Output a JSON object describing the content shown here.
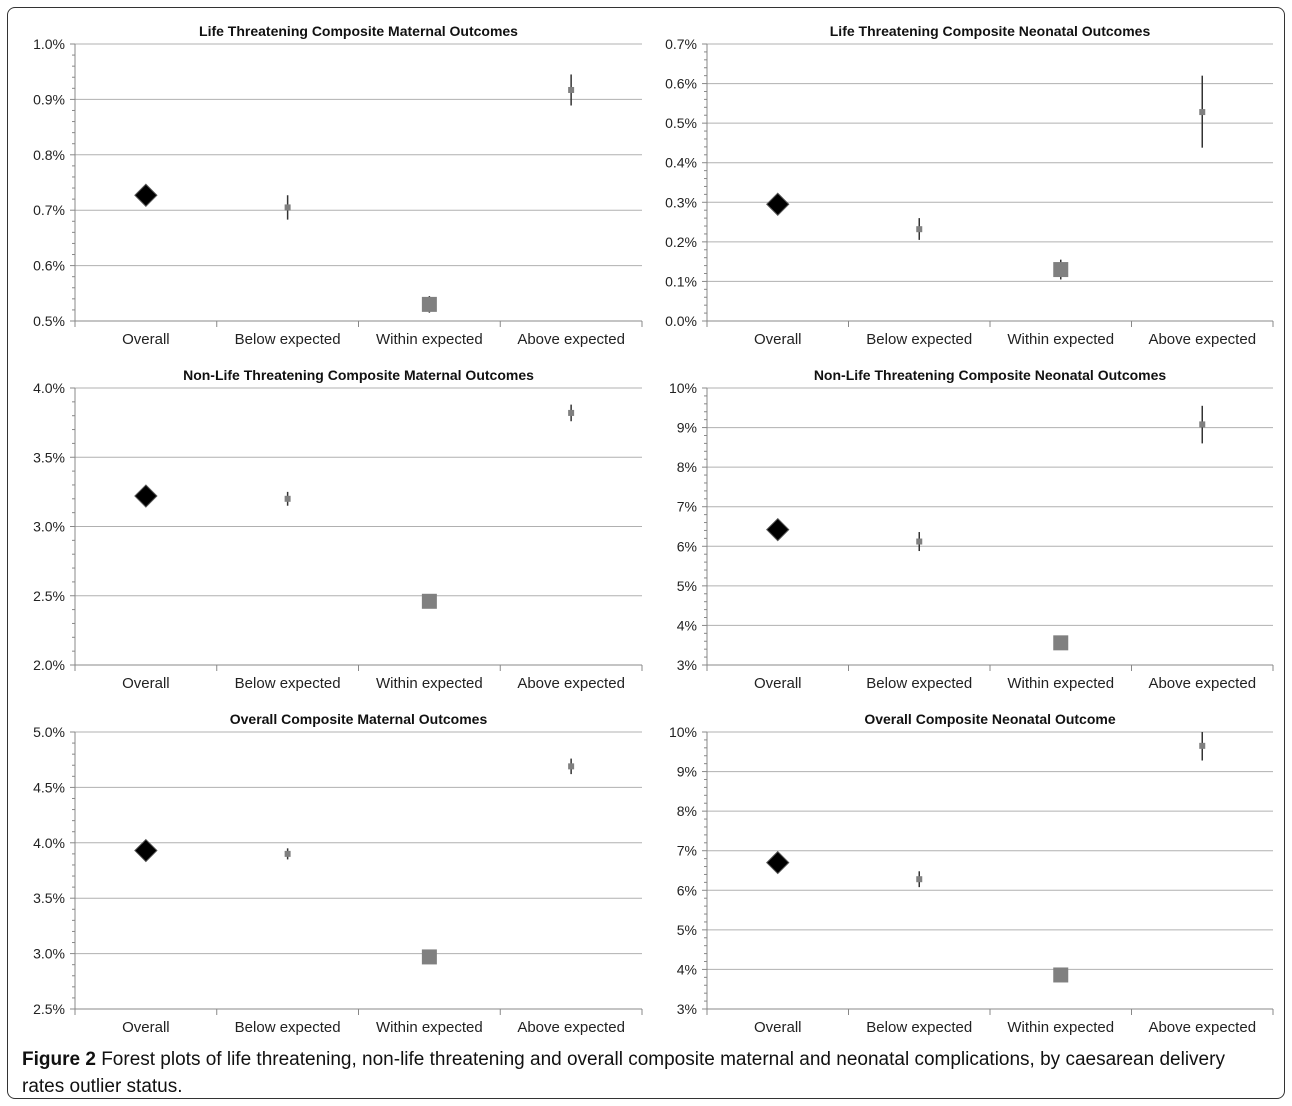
{
  "caption": {
    "label": "Figure 2",
    "text": "Forest plots of life threatening, non-life threatening and overall composite maternal and neonatal complications, by caesarean delivery rates outlier status."
  },
  "colors": {
    "overall_marker": "#000000",
    "group_marker": "#808080",
    "grid": "#b0b0b0",
    "axis": "#888888"
  },
  "chart_data": [
    {
      "type": "scatter",
      "title": "Life Threatening Composite Maternal Outcomes",
      "categories": [
        "Overall",
        "Below expected",
        "Within expected",
        "Above expected"
      ],
      "ylim": [
        0.5,
        1.0
      ],
      "yticks": [
        0.5,
        0.6,
        0.7,
        0.8,
        0.9,
        1.0
      ],
      "ytick_labels": [
        "0.5%",
        "0.6%",
        "0.7%",
        "0.8%",
        "0.9%",
        "1.0%"
      ],
      "grid": true,
      "unit": "%",
      "points": [
        {
          "category": "Overall",
          "value": 0.727,
          "lower": 0.727,
          "upper": 0.727,
          "marker": "diamond"
        },
        {
          "category": "Below expected",
          "value": 0.705,
          "lower": 0.683,
          "upper": 0.727,
          "marker": "square-small"
        },
        {
          "category": "Within expected",
          "value": 0.53,
          "lower": 0.515,
          "upper": 0.545,
          "marker": "square-large"
        },
        {
          "category": "Above expected",
          "value": 0.917,
          "lower": 0.889,
          "upper": 0.945,
          "marker": "square-small"
        }
      ]
    },
    {
      "type": "scatter",
      "title": "Life Threatening Composite Neonatal Outcomes",
      "categories": [
        "Overall",
        "Below expected",
        "Within expected",
        "Above expected"
      ],
      "ylim": [
        0.0,
        0.7
      ],
      "yticks": [
        0.0,
        0.1,
        0.2,
        0.3,
        0.4,
        0.5,
        0.6,
        0.7
      ],
      "ytick_labels": [
        "0.0%",
        "0.1%",
        "0.2%",
        "0.3%",
        "0.4%",
        "0.5%",
        "0.6%",
        "0.7%"
      ],
      "grid": true,
      "unit": "%",
      "points": [
        {
          "category": "Overall",
          "value": 0.295,
          "lower": 0.295,
          "upper": 0.295,
          "marker": "diamond"
        },
        {
          "category": "Below expected",
          "value": 0.232,
          "lower": 0.205,
          "upper": 0.26,
          "marker": "square-small"
        },
        {
          "category": "Within expected",
          "value": 0.13,
          "lower": 0.105,
          "upper": 0.155,
          "marker": "square-large"
        },
        {
          "category": "Above expected",
          "value": 0.528,
          "lower": 0.438,
          "upper": 0.62,
          "marker": "square-small"
        }
      ]
    },
    {
      "type": "scatter",
      "title": "Non-Life Threatening Composite Maternal Outcomes",
      "categories": [
        "Overall",
        "Below expected",
        "Within expected",
        "Above expected"
      ],
      "ylim": [
        2.0,
        4.0
      ],
      "yticks": [
        2.0,
        2.5,
        3.0,
        3.5,
        4.0
      ],
      "ytick_labels": [
        "2.0%",
        "2.5%",
        "3.0%",
        "3.5%",
        "4.0%"
      ],
      "grid": true,
      "unit": "%",
      "points": [
        {
          "category": "Overall",
          "value": 3.22,
          "lower": 3.22,
          "upper": 3.22,
          "marker": "diamond"
        },
        {
          "category": "Below expected",
          "value": 3.2,
          "lower": 3.15,
          "upper": 3.25,
          "marker": "square-small"
        },
        {
          "category": "Within expected",
          "value": 2.46,
          "lower": 2.43,
          "upper": 2.49,
          "marker": "square-large"
        },
        {
          "category": "Above expected",
          "value": 3.82,
          "lower": 3.76,
          "upper": 3.88,
          "marker": "square-small"
        }
      ]
    },
    {
      "type": "scatter",
      "title": "Non-Life Threatening Composite Neonatal Outcomes",
      "categories": [
        "Overall",
        "Below expected",
        "Within expected",
        "Above expected"
      ],
      "ylim": [
        3,
        10
      ],
      "yticks": [
        3,
        4,
        5,
        6,
        7,
        8,
        9,
        10
      ],
      "ytick_labels": [
        "3%",
        "4%",
        "5%",
        "6%",
        "7%",
        "8%",
        "9%",
        "10%"
      ],
      "grid": true,
      "unit": "%",
      "points": [
        {
          "category": "Overall",
          "value": 6.42,
          "lower": 6.42,
          "upper": 6.42,
          "marker": "diamond"
        },
        {
          "category": "Below expected",
          "value": 6.12,
          "lower": 5.88,
          "upper": 6.36,
          "marker": "square-small"
        },
        {
          "category": "Within expected",
          "value": 3.56,
          "lower": 3.4,
          "upper": 3.72,
          "marker": "square-large"
        },
        {
          "category": "Above expected",
          "value": 9.08,
          "lower": 8.6,
          "upper": 9.55,
          "marker": "square-small"
        }
      ]
    },
    {
      "type": "scatter",
      "title": "Overall Composite Maternal Outcomes",
      "categories": [
        "Overall",
        "Below expected",
        "Within expected",
        "Above expected"
      ],
      "ylim": [
        2.5,
        5.0
      ],
      "yticks": [
        2.5,
        3.0,
        3.5,
        4.0,
        4.5,
        5.0
      ],
      "ytick_labels": [
        "2.5%",
        "3.0%",
        "3.5%",
        "4.0%",
        "4.5%",
        "5.0%"
      ],
      "grid": true,
      "unit": "%",
      "points": [
        {
          "category": "Overall",
          "value": 3.93,
          "lower": 3.93,
          "upper": 3.93,
          "marker": "diamond"
        },
        {
          "category": "Below expected",
          "value": 3.9,
          "lower": 3.85,
          "upper": 3.95,
          "marker": "square-small"
        },
        {
          "category": "Within expected",
          "value": 2.97,
          "lower": 2.94,
          "upper": 3.0,
          "marker": "square-large"
        },
        {
          "category": "Above expected",
          "value": 4.69,
          "lower": 4.62,
          "upper": 4.76,
          "marker": "square-small"
        }
      ]
    },
    {
      "type": "scatter",
      "title": "Overall Composite Neonatal Outcome",
      "categories": [
        "Overall",
        "Below expected",
        "Within expected",
        "Above expected"
      ],
      "ylim": [
        3,
        10
      ],
      "yticks": [
        3,
        4,
        5,
        6,
        7,
        8,
        9,
        10
      ],
      "ytick_labels": [
        "3%",
        "4%",
        "5%",
        "6%",
        "7%",
        "8%",
        "9%",
        "10%"
      ],
      "grid": true,
      "unit": "%",
      "points": [
        {
          "category": "Overall",
          "value": 6.7,
          "lower": 6.7,
          "upper": 6.7,
          "marker": "diamond"
        },
        {
          "category": "Below expected",
          "value": 6.28,
          "lower": 6.08,
          "upper": 6.48,
          "marker": "square-small"
        },
        {
          "category": "Within expected",
          "value": 3.86,
          "lower": 3.74,
          "upper": 3.98,
          "marker": "square-large"
        },
        {
          "category": "Above expected",
          "value": 9.65,
          "lower": 9.28,
          "upper": 10.0,
          "marker": "square-small"
        }
      ]
    }
  ]
}
